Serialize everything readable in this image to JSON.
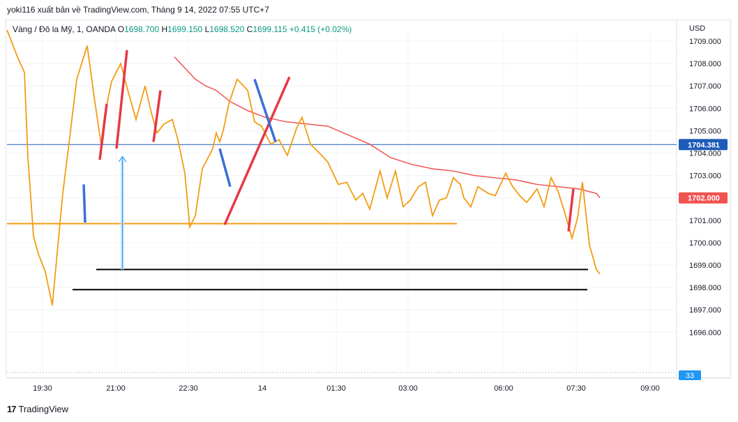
{
  "caption": "yoki116 xuất bản về TradingView.com, Tháng 9 14, 2022 07:55 UTC+7",
  "legend": {
    "symbol": "Vàng / Đô la Mỹ, 1, OANDA",
    "open_label": "O",
    "open": "1698.700",
    "high_label": "H",
    "high": "1699.150",
    "low_label": "L",
    "low": "1698.520",
    "close_label": "C",
    "close": "1699.115",
    "change": "+0.415 (+0.02%)"
  },
  "currency": "USD",
  "footer_brand": "TradingView",
  "footer_logo": "17",
  "colors": {
    "price": "#f39c12",
    "ma": "#ef5350",
    "red_marker": "#e53946",
    "blue_marker": "#3a6fd8",
    "horizontal_orange": "#f39c12",
    "support": "#000000",
    "hline_blue": "#1e5bb8",
    "badge_blue": "#1e5bb8",
    "badge_red": "#ef5350",
    "volume_badge": "#2196f3"
  },
  "chart_data": {
    "type": "line",
    "y_ticks": [
      "1709.000",
      "1708.000",
      "1707.000",
      "1706.000",
      "1705.000",
      "1704.000",
      "1703.000",
      "1702.000",
      "1701.000",
      "1700.000",
      "1699.000",
      "1698.000",
      "1697.000",
      "1696.000"
    ],
    "x_ticks": [
      "19:30",
      "21:00",
      "22:30",
      "14",
      "01:30",
      "03:00",
      "06:00",
      "07:30",
      "09:00"
    ],
    "ylim": [
      1695.2,
      1709.3
    ],
    "price_badges": [
      {
        "value": 1704.381,
        "label": "1704.381",
        "kind": "hline_blue"
      },
      {
        "value": 1702.0,
        "label": "1702.000",
        "kind": "ma"
      }
    ],
    "volume_badge": "33",
    "series": [
      {
        "role": "price",
        "x": [
          0,
          15,
          25,
          30,
          38,
          45,
          55,
          65,
          80,
          88,
          100,
          115,
          125,
          135,
          140,
          150,
          163,
          175,
          185,
          198,
          207,
          215,
          225,
          237,
          245,
          255,
          262,
          270,
          280,
          295,
          300,
          305,
          310,
          318,
          330,
          345,
          355,
          365,
          378,
          390,
          402,
          415,
          423,
          435,
          448,
          460,
          475,
          487,
          500,
          510,
          520,
          535,
          545,
          557,
          568,
          578,
          590,
          600,
          610,
          620,
          630,
          640,
          650,
          655,
          665,
          675,
          690,
          700,
          715,
          725,
          735,
          745,
          760,
          770,
          780,
          790,
          800,
          810,
          818,
          825,
          835,
          845,
          850
        ],
        "y": [
          1709.5,
          1708.3,
          1707.6,
          1703.8,
          1700.3,
          1699.5,
          1698.7,
          1697.2,
          1702.2,
          1704.2,
          1707.3,
          1708.8,
          1706.5,
          1704.4,
          1705.7,
          1707.2,
          1708.0,
          1706.6,
          1705.5,
          1707.0,
          1705.8,
          1704.9,
          1705.3,
          1705.5,
          1704.6,
          1703.1,
          1700.7,
          1701.2,
          1703.3,
          1704.2,
          1704.9,
          1704.5,
          1705.0,
          1706.2,
          1707.3,
          1706.8,
          1705.4,
          1705.2,
          1704.4,
          1704.6,
          1703.9,
          1705.1,
          1705.6,
          1704.4,
          1704.0,
          1703.6,
          1702.6,
          1702.7,
          1701.9,
          1702.2,
          1701.5,
          1703.2,
          1702.0,
          1703.2,
          1701.6,
          1701.9,
          1702.5,
          1702.7,
          1701.2,
          1701.9,
          1702.0,
          1702.9,
          1702.6,
          1702.0,
          1701.6,
          1702.5,
          1702.2,
          1702.1,
          1703.1,
          1702.5,
          1702.1,
          1701.8,
          1702.4,
          1701.6,
          1702.9,
          1702.3,
          1701.3,
          1700.2,
          1701.1,
          1702.7,
          1699.9,
          1698.8,
          1698.6
        ]
      },
      {
        "role": "ma",
        "x": [
          240,
          255,
          270,
          285,
          300,
          320,
          345,
          370,
          400,
          430,
          460,
          490,
          520,
          550,
          580,
          610,
          640,
          670,
          700,
          730,
          760,
          790,
          820,
          845,
          850
        ],
        "y": [
          1708.3,
          1707.8,
          1707.3,
          1707.0,
          1706.8,
          1706.3,
          1705.9,
          1705.6,
          1705.4,
          1705.3,
          1705.2,
          1704.8,
          1704.4,
          1703.8,
          1703.5,
          1703.3,
          1703.2,
          1703.0,
          1702.9,
          1702.8,
          1702.6,
          1702.5,
          1702.4,
          1702.2,
          1702.0
        ]
      }
    ]
  }
}
